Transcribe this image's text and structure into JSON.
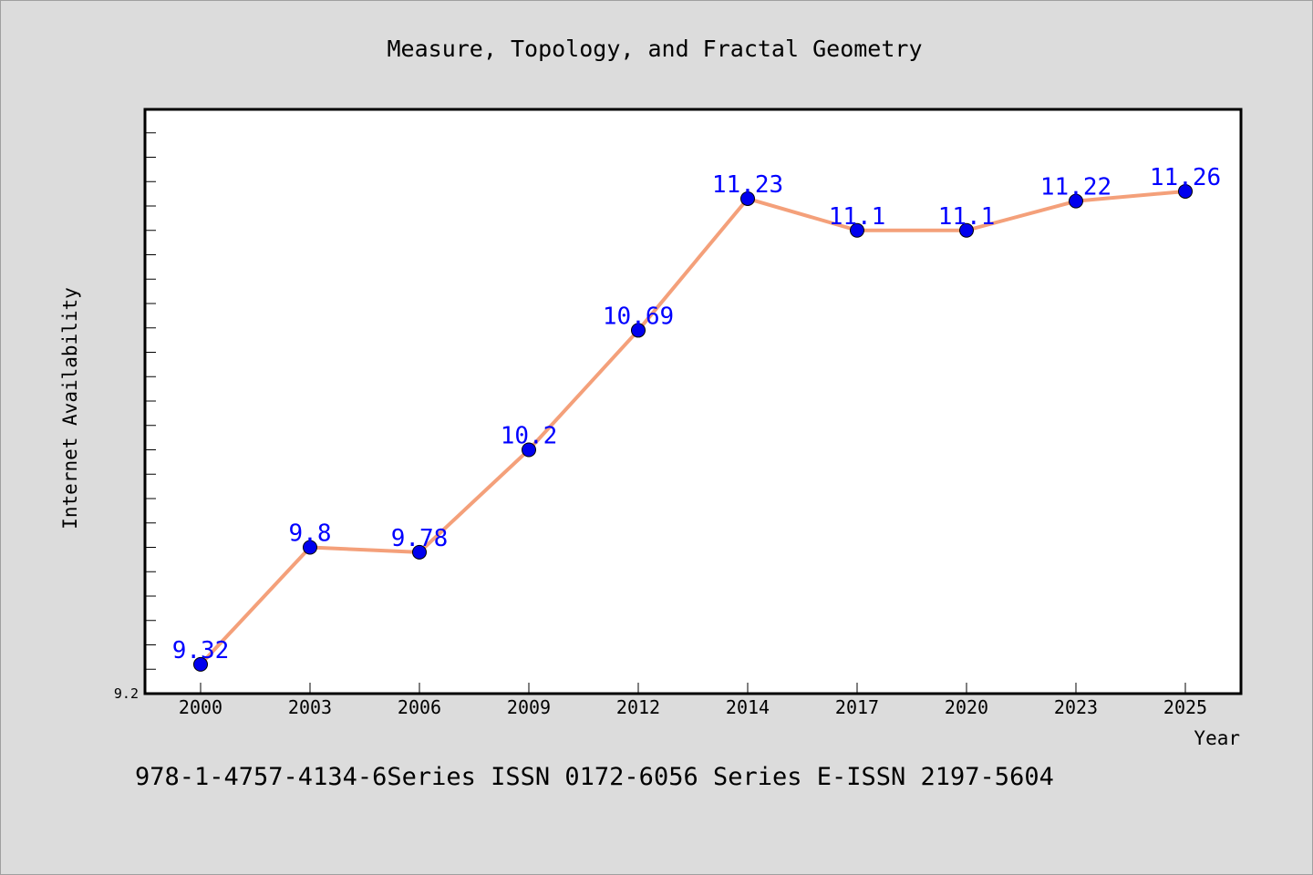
{
  "chart_data": {
    "type": "line",
    "title": "Measure, Topology, and Fractal Geometry",
    "xlabel": "Year",
    "ylabel": "Internet Availability",
    "categories": [
      "2000",
      "2003",
      "2006",
      "2009",
      "2012",
      "2014",
      "2017",
      "2020",
      "2023",
      "2025"
    ],
    "series": [
      {
        "values": [
          9.32,
          9.8,
          9.78,
          10.2,
          10.69,
          11.23,
          11.1,
          11.1,
          11.22,
          11.26
        ],
        "labels": [
          "9.32",
          "9.8",
          "9.78",
          "10.2",
          "10.69",
          "11.23",
          "11.1",
          "11.1",
          "11.22",
          "11.26"
        ],
        "line_color": "#f4a07a",
        "marker_color": "#0000ee"
      }
    ],
    "ylim": [
      9.2,
      11.6
    ],
    "ytick_label": "9.2",
    "grid": false,
    "legend": "none"
  },
  "footer": "978-1-4757-4134-6Series ISSN 0172-6056 Series E-ISSN 2197-5604",
  "colors": {
    "background": "#dcdcdc",
    "plot_background": "#ffffff",
    "data_label": "#0000ff"
  }
}
